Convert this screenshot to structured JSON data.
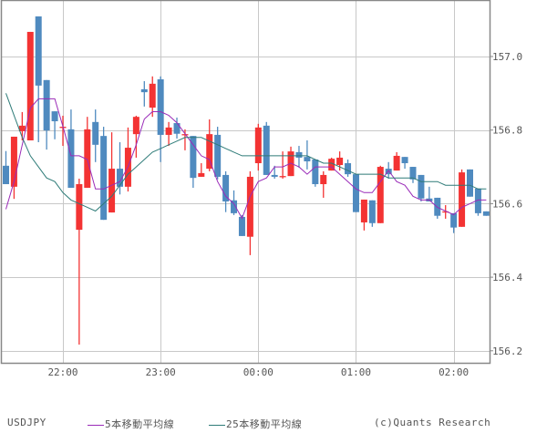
{
  "legend": {
    "symbol": "USDJPY",
    "ma5_label": "5本移動平均線",
    "ma25_label": "25本移動平均線",
    "copyright": "(c)Quants Research"
  },
  "colors": {
    "up": "#f33333",
    "down": "#4f8abf",
    "ma5": "#9a2bb8",
    "ma25": "#2e7b78",
    "grid": "#c8c8c8",
    "frame": "#888888",
    "text": "#555555"
  },
  "chart_data": {
    "type": "candlestick",
    "title": "USDJPY",
    "xlabel": "",
    "ylabel": "",
    "interval": "5min",
    "ylim": [
      156.15,
      157.155
    ],
    "y_ticks": [
      157.0,
      156.8,
      156.6,
      156.4,
      156.2
    ],
    "y_tick_labels": [
      "157.0",
      "156.8",
      "156.6",
      "156.4",
      "156.2"
    ],
    "x_ticks": [
      {
        "index": 7,
        "label": "22:00"
      },
      {
        "index": 19,
        "label": "23:00"
      },
      {
        "index": 31,
        "label": "00:00"
      },
      {
        "index": 43,
        "label": "01:00"
      },
      {
        "index": 55,
        "label": "02:00"
      }
    ],
    "grid": true,
    "legend_position": "bottom",
    "candles": [
      {
        "t": "21:25",
        "o": 156.703,
        "h": 156.743,
        "l": 156.653,
        "c": 156.653
      },
      {
        "t": "21:30",
        "o": 156.646,
        "h": 156.782,
        "l": 156.613,
        "c": 156.782
      },
      {
        "t": "21:35",
        "o": 156.797,
        "h": 156.849,
        "l": 156.772,
        "c": 156.812
      },
      {
        "t": "21:40",
        "o": 156.772,
        "h": 157.067,
        "l": 156.772,
        "c": 157.067
      },
      {
        "t": "21:45",
        "o": 157.109,
        "h": 157.109,
        "l": 156.767,
        "c": 156.921
      },
      {
        "t": "21:50",
        "o": 156.936,
        "h": 156.936,
        "l": 156.747,
        "c": 156.799
      },
      {
        "t": "21:55",
        "o": 156.851,
        "h": 156.851,
        "l": 156.775,
        "c": 156.824
      },
      {
        "t": "22:00",
        "o": 156.807,
        "h": 156.839,
        "l": 156.757,
        "c": 156.809
      },
      {
        "t": "22:05",
        "o": 156.802,
        "h": 156.856,
        "l": 156.643,
        "c": 156.643
      },
      {
        "t": "22:10",
        "o": 156.529,
        "h": 156.668,
        "l": 156.217,
        "c": 156.653
      },
      {
        "t": "22:15",
        "o": 156.643,
        "h": 156.836,
        "l": 156.643,
        "c": 156.802
      },
      {
        "t": "22:20",
        "o": 156.822,
        "h": 156.856,
        "l": 156.713,
        "c": 156.76
      },
      {
        "t": "22:25",
        "o": 156.784,
        "h": 156.809,
        "l": 156.556,
        "c": 156.556
      },
      {
        "t": "22:30",
        "o": 156.576,
        "h": 156.794,
        "l": 156.576,
        "c": 156.695
      },
      {
        "t": "22:35",
        "o": 156.695,
        "h": 156.767,
        "l": 156.625,
        "c": 156.646
      },
      {
        "t": "22:40",
        "o": 156.646,
        "h": 156.807,
        "l": 156.633,
        "c": 156.752
      },
      {
        "t": "22:45",
        "o": 156.789,
        "h": 156.839,
        "l": 156.725,
        "c": 156.836
      },
      {
        "t": "22:50",
        "o": 156.911,
        "h": 156.933,
        "l": 156.864,
        "c": 156.903
      },
      {
        "t": "22:55",
        "o": 156.861,
        "h": 156.946,
        "l": 156.836,
        "c": 156.926
      },
      {
        "t": "23:00",
        "o": 156.938,
        "h": 156.946,
        "l": 156.713,
        "c": 156.787
      },
      {
        "t": "23:05",
        "o": 156.787,
        "h": 156.822,
        "l": 156.757,
        "c": 156.807
      },
      {
        "t": "23:10",
        "o": 156.819,
        "h": 156.834,
        "l": 156.777,
        "c": 156.79
      },
      {
        "t": "23:15",
        "o": 156.789,
        "h": 156.802,
        "l": 156.745,
        "c": 156.789
      },
      {
        "t": "23:20",
        "o": 156.784,
        "h": 156.784,
        "l": 156.643,
        "c": 156.67
      },
      {
        "t": "23:25",
        "o": 156.673,
        "h": 156.71,
        "l": 156.673,
        "c": 156.683
      },
      {
        "t": "23:30",
        "o": 156.695,
        "h": 156.829,
        "l": 156.688,
        "c": 156.789
      },
      {
        "t": "23:35",
        "o": 156.787,
        "h": 156.809,
        "l": 156.666,
        "c": 156.673
      },
      {
        "t": "23:40",
        "o": 156.678,
        "h": 156.688,
        "l": 156.577,
        "c": 156.606
      },
      {
        "t": "23:45",
        "o": 156.609,
        "h": 156.636,
        "l": 156.569,
        "c": 156.574
      },
      {
        "t": "23:50",
        "o": 156.564,
        "h": 156.569,
        "l": 156.512,
        "c": 156.512
      },
      {
        "t": "23:55",
        "o": 156.51,
        "h": 156.688,
        "l": 156.46,
        "c": 156.673
      },
      {
        "t": "00:00",
        "o": 156.71,
        "h": 156.817,
        "l": 156.69,
        "c": 156.807
      },
      {
        "t": "00:05",
        "o": 156.812,
        "h": 156.822,
        "l": 156.678,
        "c": 156.678
      },
      {
        "t": "00:10",
        "o": 156.678,
        "h": 156.703,
        "l": 156.668,
        "c": 156.673
      },
      {
        "t": "00:15",
        "o": 156.673,
        "h": 156.742,
        "l": 156.668,
        "c": 156.675
      },
      {
        "t": "00:20",
        "o": 156.675,
        "h": 156.755,
        "l": 156.675,
        "c": 156.742
      },
      {
        "t": "00:25",
        "o": 156.74,
        "h": 156.757,
        "l": 156.698,
        "c": 156.725
      },
      {
        "t": "00:30",
        "o": 156.727,
        "h": 156.772,
        "l": 156.693,
        "c": 156.715
      },
      {
        "t": "00:35",
        "o": 156.72,
        "h": 156.72,
        "l": 156.646,
        "c": 156.653
      },
      {
        "t": "00:40",
        "o": 156.653,
        "h": 156.688,
        "l": 156.616,
        "c": 156.678
      },
      {
        "t": "00:45",
        "o": 156.69,
        "h": 156.725,
        "l": 156.69,
        "c": 156.722
      },
      {
        "t": "00:50",
        "o": 156.705,
        "h": 156.742,
        "l": 156.69,
        "c": 156.725
      },
      {
        "t": "00:55",
        "o": 156.71,
        "h": 156.72,
        "l": 156.673,
        "c": 156.68
      },
      {
        "t": "01:00",
        "o": 156.68,
        "h": 156.68,
        "l": 156.577,
        "c": 156.577
      },
      {
        "t": "01:05",
        "o": 156.549,
        "h": 156.611,
        "l": 156.527,
        "c": 156.611
      },
      {
        "t": "01:10",
        "o": 156.609,
        "h": 156.609,
        "l": 156.537,
        "c": 156.547
      },
      {
        "t": "01:15",
        "o": 156.547,
        "h": 156.703,
        "l": 156.547,
        "c": 156.7
      },
      {
        "t": "01:20",
        "o": 156.695,
        "h": 156.713,
        "l": 156.668,
        "c": 156.68
      },
      {
        "t": "01:25",
        "o": 156.69,
        "h": 156.74,
        "l": 156.69,
        "c": 156.73
      },
      {
        "t": "01:30",
        "o": 156.727,
        "h": 156.722,
        "l": 156.695,
        "c": 156.71
      },
      {
        "t": "01:35",
        "o": 156.7,
        "h": 156.7,
        "l": 156.656,
        "c": 156.666
      },
      {
        "t": "01:40",
        "o": 156.678,
        "h": 156.678,
        "l": 156.606,
        "c": 156.614
      },
      {
        "t": "01:45",
        "o": 156.614,
        "h": 156.646,
        "l": 156.611,
        "c": 156.606
      },
      {
        "t": "01:50",
        "o": 156.616,
        "h": 156.616,
        "l": 156.559,
        "c": 156.567
      },
      {
        "t": "01:55",
        "o": 156.579,
        "h": 156.596,
        "l": 156.559,
        "c": 156.579
      },
      {
        "t": "02:00",
        "o": 156.574,
        "h": 156.574,
        "l": 156.52,
        "c": 156.535
      },
      {
        "t": "02:05",
        "o": 156.537,
        "h": 156.693,
        "l": 156.537,
        "c": 156.685
      },
      {
        "t": "02:10",
        "o": 156.693,
        "h": 156.693,
        "l": 156.619,
        "c": 156.619
      },
      {
        "t": "02:15",
        "o": 156.641,
        "h": 156.641,
        "l": 156.567,
        "c": 156.574
      },
      {
        "t": "02:20",
        "o": 156.579,
        "h": 156.579,
        "l": 156.567,
        "c": 156.567
      }
    ],
    "series": [
      {
        "name": "5本移動平均線",
        "color": "#9a2bb8",
        "values": [
          156.585,
          156.66,
          156.76,
          156.86,
          156.885,
          156.885,
          156.885,
          156.81,
          156.73,
          156.73,
          156.72,
          156.64,
          156.64,
          156.65,
          156.66,
          156.7,
          156.76,
          156.83,
          156.85,
          156.85,
          156.84,
          156.82,
          156.79,
          156.76,
          156.73,
          156.72,
          156.66,
          156.62,
          156.6,
          156.56,
          156.62,
          156.66,
          156.67,
          156.7,
          156.7,
          156.71,
          156.7,
          156.68,
          156.7,
          156.7,
          156.7,
          156.68,
          156.66,
          156.64,
          156.63,
          156.63,
          156.66,
          156.69,
          156.66,
          156.65,
          156.62,
          156.61,
          156.61,
          156.59,
          156.58,
          156.57,
          156.59,
          156.6,
          156.61,
          156.61
        ]
      },
      {
        "name": "25本移動平均線",
        "color": "#2e7b78",
        "values": [
          156.9,
          156.84,
          156.78,
          156.73,
          156.7,
          156.67,
          156.66,
          156.63,
          156.61,
          156.6,
          156.59,
          156.58,
          156.6,
          156.62,
          156.65,
          156.68,
          156.7,
          156.72,
          156.74,
          156.75,
          156.76,
          156.77,
          156.78,
          156.78,
          156.78,
          156.77,
          156.76,
          156.75,
          156.74,
          156.73,
          156.73,
          156.73,
          156.73,
          156.73,
          156.73,
          156.73,
          156.73,
          156.73,
          156.72,
          156.71,
          156.71,
          156.7,
          156.69,
          156.68,
          156.68,
          156.68,
          156.68,
          156.67,
          156.67,
          156.67,
          156.67,
          156.66,
          156.66,
          156.66,
          156.65,
          156.65,
          156.65,
          156.65,
          156.64,
          156.64
        ]
      }
    ]
  }
}
